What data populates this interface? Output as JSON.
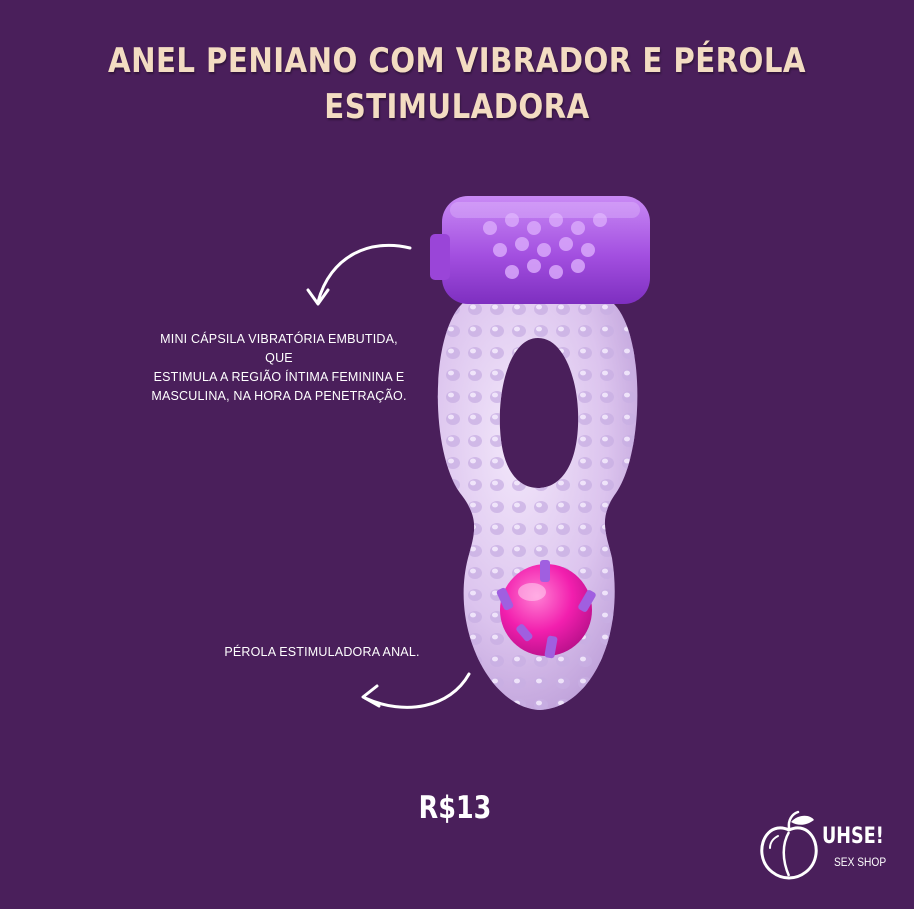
{
  "title": {
    "line1": "ANEL PENIANO COM VIBRADOR E PÉROLA",
    "line2": "ESTIMULADORA"
  },
  "callouts": [
    {
      "line1": "MINI CÁPSILA VIBRATÓRIA EMBUTIDA, QUE",
      "line2": "ESTIMULA A REGIÃO ÍNTIMA FEMININA E",
      "line3": "MASCULINA, NA HORA DA PENETRAÇÃO."
    },
    {
      "text": "PÉROLA ESTIMULADORA ANAL."
    }
  ],
  "price": "R$13",
  "brand": {
    "name": "UHSE!",
    "tagline": "SEX SHOP",
    "logo_icon": "peach-icon"
  },
  "colors": {
    "background": "#4a1f5b",
    "title": "#f3dcc2",
    "text": "#ffffff",
    "product_ring": "#dcc4ee",
    "capsule": "#a34fe0",
    "pearl": "#f21fae"
  }
}
